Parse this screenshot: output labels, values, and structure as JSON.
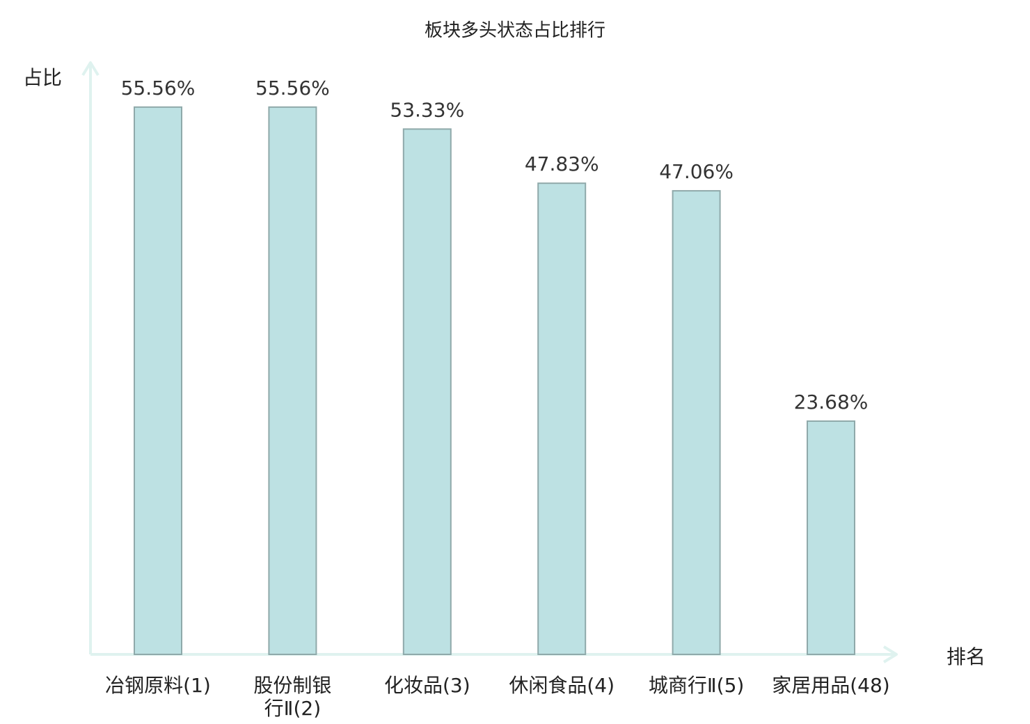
{
  "chart_data": {
    "type": "bar",
    "title": "板块多头状态占比排行",
    "xlabel": "排名",
    "ylabel": "占比",
    "categories": [
      [
        "冶钢原料(1)"
      ],
      [
        "股份制银",
        "行Ⅱ(2)"
      ],
      [
        "化妆品(3)"
      ],
      [
        "休闲食品(4)"
      ],
      [
        "城商行Ⅱ(5)"
      ],
      [
        "家居用品(48)"
      ]
    ],
    "values": [
      55.56,
      55.56,
      53.33,
      47.83,
      47.06,
      23.68
    ],
    "value_labels": [
      "55.56%",
      "55.56%",
      "53.33%",
      "47.83%",
      "47.06%",
      "23.68%"
    ],
    "highlight_index": 5,
    "ylim": [
      0,
      60
    ],
    "grid": false,
    "colors": {
      "bar_fill": "#bde1e3",
      "bar_stroke": "#8fa9aa",
      "axis": "#dff2ef",
      "highlight_text": "#e0201b",
      "text": "#222222"
    }
  }
}
